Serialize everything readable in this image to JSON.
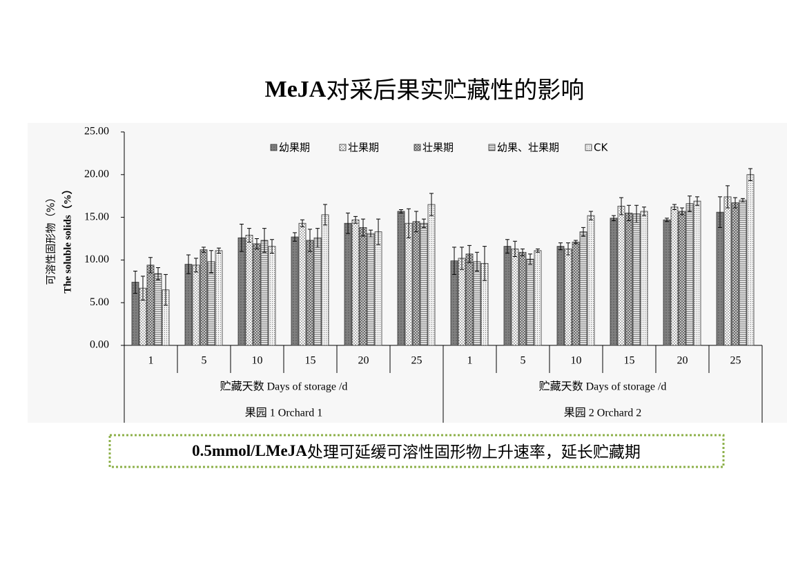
{
  "title": [
    "MeJA",
    "对采后果实贮藏性的影响"
  ],
  "note": [
    "0.5mmol/LMeJA",
    "处理可延缓可溶性固形物上升速率，延长贮藏期"
  ],
  "chart_data": {
    "type": "bar",
    "y_label": [
      "可溶性固形物（%）",
      "The soluble solids（%）"
    ],
    "categories": [
      "1",
      "5",
      "10",
      "15",
      "20",
      "25",
      "1",
      "5",
      "10",
      "15",
      "20",
      "25"
    ],
    "groups": [
      {
        "name": "果园 1 Orchard 1",
        "x_label": "贮藏天数 Days of storage /d"
      },
      {
        "name": "果园 2 Orchard 2",
        "x_label": "贮藏天数 Days of storage /d"
      }
    ],
    "series": [
      {
        "name": "幼果期",
        "color": "#7f7f7f",
        "values": [
          7.4,
          9.5,
          12.6,
          12.7,
          14.3,
          15.7,
          9.9,
          11.6,
          11.6,
          14.9,
          14.7,
          15.6
        ],
        "errors": [
          1.3,
          1.1,
          1.6,
          0.5,
          1.2,
          0.2,
          1.6,
          0.8,
          0.4,
          0.3,
          0.2,
          1.8
        ]
      },
      {
        "name": "壮果期",
        "color": "#9a9a9a",
        "values": [
          6.7,
          9.4,
          12.9,
          14.3,
          14.7,
          14.3,
          10.2,
          11.3,
          11.3,
          16.3,
          16.2,
          17.4
        ],
        "errors": [
          1.4,
          0.8,
          0.8,
          0.4,
          0.4,
          1.7,
          1.3,
          0.9,
          0.7,
          1.0,
          0.3,
          1.3
        ]
      },
      {
        "name": "壮果期",
        "color": "#666666",
        "values": [
          9.4,
          11.2,
          11.9,
          12.3,
          13.8,
          14.5,
          10.7,
          10.9,
          12.1,
          15.5,
          15.7,
          16.7
        ],
        "errors": [
          0.9,
          0.3,
          0.6,
          1.3,
          1.0,
          1.2,
          1.0,
          0.4,
          0.2,
          0.9,
          0.4,
          0.6
        ]
      },
      {
        "name": "幼果、壮果期",
        "color": "#555555",
        "values": [
          8.4,
          9.8,
          12.3,
          12.6,
          13.1,
          14.3,
          9.8,
          10.1,
          13.3,
          15.4,
          16.6,
          17.0
        ],
        "errors": [
          0.7,
          1.3,
          1.4,
          1.1,
          0.4,
          0.5,
          1.1,
          0.6,
          0.5,
          1.0,
          0.9,
          0.2
        ]
      },
      {
        "name": "CK",
        "color": "#888888",
        "values": [
          6.5,
          11.1,
          11.6,
          15.3,
          13.3,
          16.5,
          9.6,
          11.1,
          15.2,
          15.7,
          16.9,
          20.0
        ],
        "errors": [
          1.8,
          0.3,
          0.8,
          1.2,
          1.5,
          1.3,
          2.0,
          0.2,
          0.5,
          0.5,
          0.5,
          0.7
        ]
      }
    ],
    "ylim": [
      0,
      25
    ],
    "yticks": [
      {
        "value": 0,
        "label": "0.00"
      },
      {
        "value": 5,
        "label": "5.00"
      },
      {
        "value": 10,
        "label": "10.00"
      },
      {
        "value": 15,
        "label": "15.00"
      },
      {
        "value": 20,
        "label": "20.00"
      },
      {
        "value": 25,
        "label": "25.00"
      }
    ]
  }
}
